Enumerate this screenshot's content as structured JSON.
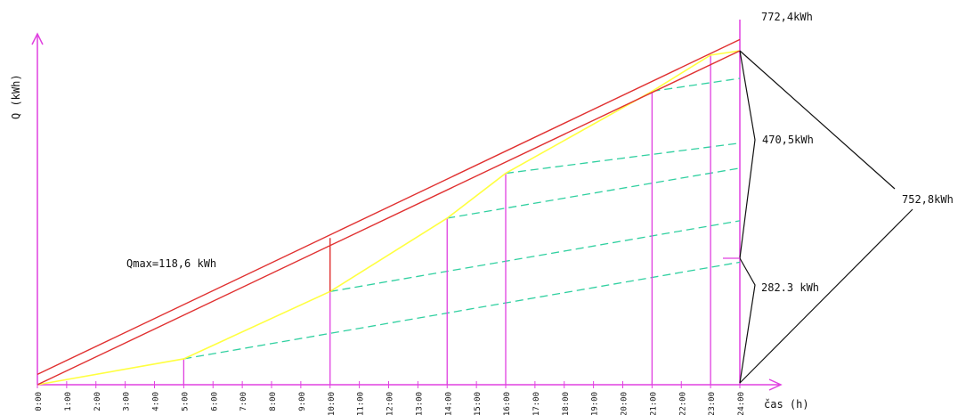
{
  "chart_data": {
    "type": "line",
    "title": "",
    "xlabel": "čas (h)",
    "ylabel": "Q (kWh)",
    "x_range": [
      0,
      24
    ],
    "y_range": [
      0,
      772.4
    ],
    "x_ticks": [
      "0:00",
      "1:00",
      "2:00",
      "3:00",
      "4:00",
      "5:00",
      "6:00",
      "7:00",
      "8:00",
      "9:00",
      "10:00",
      "11:00",
      "12:00",
      "13:00",
      "14:00",
      "15:00",
      "16:00",
      "17:00",
      "18:00",
      "19:00",
      "20:00",
      "21:00",
      "22:00",
      "23:00",
      "24:00"
    ],
    "annotations": {
      "total_top": "772,4kWh",
      "mid": "470,5kWh",
      "right": "752,8kWh",
      "low": "282.3 kWh",
      "qmax": "Qmax=118,6 kWh"
    },
    "cumulative_demand": {
      "x": [
        0,
        5,
        10,
        14,
        16,
        21,
        23,
        24
      ],
      "y": [
        0,
        30,
        108,
        193,
        245,
        340,
        382,
        387
      ]
    },
    "supply_lines": [
      {
        "x": [
          0,
          24
        ],
        "y": [
          12,
          400
        ]
      },
      {
        "x": [
          0,
          24
        ],
        "y": [
          0,
          387
        ]
      }
    ],
    "qmax_segment": {
      "x": 10,
      "y": [
        108,
        170
      ]
    },
    "vertical_markers": [
      5,
      10,
      14,
      16,
      21,
      23
    ],
    "storage_lines": [
      {
        "x": [
          5,
          24
        ],
        "y": [
          30,
          142
        ]
      },
      {
        "x": [
          10,
          24
        ],
        "y": [
          108,
          190
        ]
      },
      {
        "x": [
          14,
          24
        ],
        "y": [
          193,
          251
        ]
      },
      {
        "x": [
          16,
          24
        ],
        "y": [
          245,
          280
        ]
      },
      {
        "x": [
          21,
          24
        ],
        "y": [
          340,
          355
        ]
      }
    ],
    "colors": {
      "axis": "#e040e0",
      "supply": "#e03030",
      "demand": "#ffff40",
      "storage": "#30d0a0",
      "annotation": "#111111"
    }
  }
}
